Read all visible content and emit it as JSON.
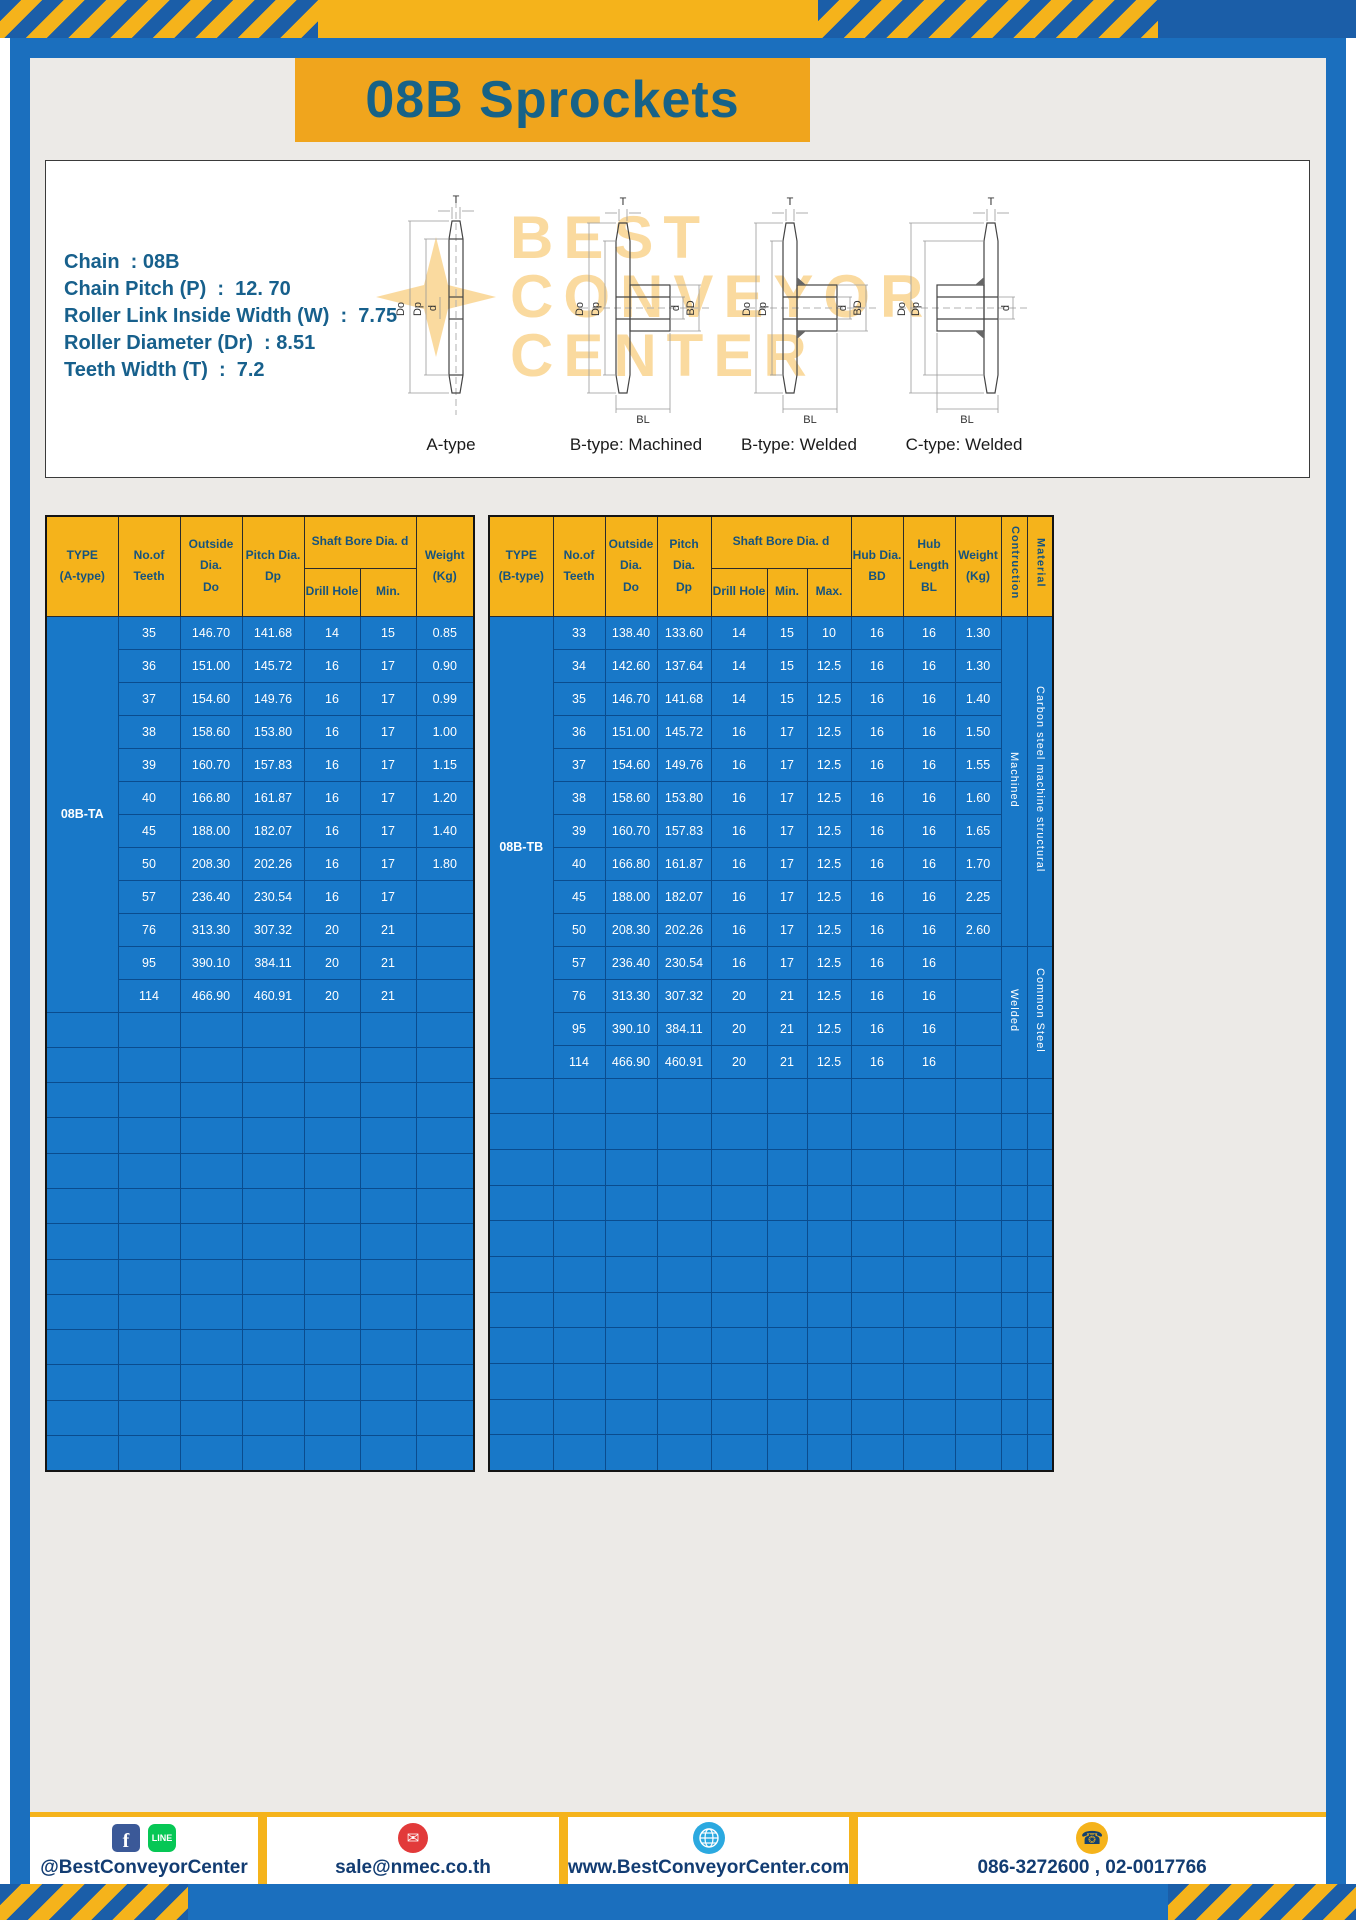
{
  "page": {
    "title": "08B Sprockets"
  },
  "specs": {
    "lines": [
      "Chain  : 08B",
      "Chain Pitch (P)  :  12. 70",
      "Roller Link Inside Width (W)  :  7.75",
      "Roller Diameter (Dr)  : 8.51",
      "Teeth Width (T)  :  7.2"
    ]
  },
  "drawings": {
    "watermark_lines": [
      "BEST",
      "CONVEYOR",
      "CENTER"
    ],
    "figures": [
      {
        "label": "A-type",
        "dims": {
          "t": "T",
          "do": "Do",
          "dp": "Dp",
          "d": "d"
        }
      },
      {
        "label": "B-type: Machined",
        "dims": {
          "t": "T",
          "do": "Do",
          "dp": "Dp",
          "d": "d",
          "bd": "BD",
          "bl": "BL"
        }
      },
      {
        "label": "B-type: Welded",
        "dims": {
          "t": "T",
          "do": "Do",
          "dp": "Dp",
          "d": "d",
          "bd": "BD",
          "bl": "BL"
        }
      },
      {
        "label": "C-type: Welded",
        "dims": {
          "t": "T",
          "do": "Do",
          "dp": "Dp",
          "d": "d",
          "bl": "BL"
        }
      }
    ]
  },
  "table_a": {
    "type_label": "08B-TA",
    "header": {
      "type": "TYPE\n(A-type)",
      "teeth": "No.of\nTeeth",
      "outside": "Outside\nDia.\nDo",
      "pitch": "Pitch Dia.\nDp",
      "shaft": "Shaft Bore Dia. d",
      "drill": "Drill Hole",
      "min": "Min.",
      "weight": "Weight\n(Kg)"
    },
    "rows": [
      {
        "teeth": "35",
        "do": "146.70",
        "dp": "141.68",
        "drill": "14",
        "min": "15",
        "weight": "0.85"
      },
      {
        "teeth": "36",
        "do": "151.00",
        "dp": "145.72",
        "drill": "16",
        "min": "17",
        "weight": "0.90"
      },
      {
        "teeth": "37",
        "do": "154.60",
        "dp": "149.76",
        "drill": "16",
        "min": "17",
        "weight": "0.99"
      },
      {
        "teeth": "38",
        "do": "158.60",
        "dp": "153.80",
        "drill": "16",
        "min": "17",
        "weight": "1.00"
      },
      {
        "teeth": "39",
        "do": "160.70",
        "dp": "157.83",
        "drill": "16",
        "min": "17",
        "weight": "1.15"
      },
      {
        "teeth": "40",
        "do": "166.80",
        "dp": "161.87",
        "drill": "16",
        "min": "17",
        "weight": "1.20"
      },
      {
        "teeth": "45",
        "do": "188.00",
        "dp": "182.07",
        "drill": "16",
        "min": "17",
        "weight": "1.40"
      },
      {
        "teeth": "50",
        "do": "208.30",
        "dp": "202.26",
        "drill": "16",
        "min": "17",
        "weight": "1.80"
      },
      {
        "teeth": "57",
        "do": "236.40",
        "dp": "230.54",
        "drill": "16",
        "min": "17",
        "weight": ""
      },
      {
        "teeth": "76",
        "do": "313.30",
        "dp": "307.32",
        "drill": "20",
        "min": "21",
        "weight": ""
      },
      {
        "teeth": "95",
        "do": "390.10",
        "dp": "384.11",
        "drill": "20",
        "min": "21",
        "weight": ""
      },
      {
        "teeth": "114",
        "do": "466.90",
        "dp": "460.91",
        "drill": "20",
        "min": "21",
        "weight": ""
      }
    ],
    "empty_rows": 13
  },
  "table_b": {
    "type_label": "08B-TB",
    "header": {
      "type": "TYPE\n(B-type)",
      "teeth": "No.of\nTeeth",
      "outside": "Outside\nDia.\nDo",
      "pitch": "Pitch Dia.\nDp",
      "shaft": "Shaft Bore Dia. d",
      "drill": "Drill Hole",
      "min": "Min.",
      "max": "Max.",
      "hub_dia": "Hub Dia.\nBD",
      "hub_len": "Hub\nLength\nBL",
      "weight": "Weight\n(Kg)",
      "construction": "Contruction",
      "material": "Material"
    },
    "rows": [
      {
        "teeth": "33",
        "do": "138.40",
        "dp": "133.60",
        "drill": "14",
        "min": "15",
        "max": "10",
        "bd": "16",
        "bl": "16",
        "weight": "1.30"
      },
      {
        "teeth": "34",
        "do": "142.60",
        "dp": "137.64",
        "drill": "14",
        "min": "15",
        "max": "12.5",
        "bd": "16",
        "bl": "16",
        "weight": "1.30"
      },
      {
        "teeth": "35",
        "do": "146.70",
        "dp": "141.68",
        "drill": "14",
        "min": "15",
        "max": "12.5",
        "bd": "16",
        "bl": "16",
        "weight": "1.40"
      },
      {
        "teeth": "36",
        "do": "151.00",
        "dp": "145.72",
        "drill": "16",
        "min": "17",
        "max": "12.5",
        "bd": "16",
        "bl": "16",
        "weight": "1.50"
      },
      {
        "teeth": "37",
        "do": "154.60",
        "dp": "149.76",
        "drill": "16",
        "min": "17",
        "max": "12.5",
        "bd": "16",
        "bl": "16",
        "weight": "1.55"
      },
      {
        "teeth": "38",
        "do": "158.60",
        "dp": "153.80",
        "drill": "16",
        "min": "17",
        "max": "12.5",
        "bd": "16",
        "bl": "16",
        "weight": "1.60"
      },
      {
        "teeth": "39",
        "do": "160.70",
        "dp": "157.83",
        "drill": "16",
        "min": "17",
        "max": "12.5",
        "bd": "16",
        "bl": "16",
        "weight": "1.65"
      },
      {
        "teeth": "40",
        "do": "166.80",
        "dp": "161.87",
        "drill": "16",
        "min": "17",
        "max": "12.5",
        "bd": "16",
        "bl": "16",
        "weight": "1.70"
      },
      {
        "teeth": "45",
        "do": "188.00",
        "dp": "182.07",
        "drill": "16",
        "min": "17",
        "max": "12.5",
        "bd": "16",
        "bl": "16",
        "weight": "2.25"
      },
      {
        "teeth": "50",
        "do": "208.30",
        "dp": "202.26",
        "drill": "16",
        "min": "17",
        "max": "12.5",
        "bd": "16",
        "bl": "16",
        "weight": "2.60"
      },
      {
        "teeth": "57",
        "do": "236.40",
        "dp": "230.54",
        "drill": "16",
        "min": "17",
        "max": "12.5",
        "bd": "16",
        "bl": "16",
        "weight": ""
      },
      {
        "teeth": "76",
        "do": "313.30",
        "dp": "307.32",
        "drill": "20",
        "min": "21",
        "max": "12.5",
        "bd": "16",
        "bl": "16",
        "weight": ""
      },
      {
        "teeth": "95",
        "do": "390.10",
        "dp": "384.11",
        "drill": "20",
        "min": "21",
        "max": "12.5",
        "bd": "16",
        "bl": "16",
        "weight": ""
      },
      {
        "teeth": "114",
        "do": "466.90",
        "dp": "460.91",
        "drill": "20",
        "min": "21",
        "max": "12.5",
        "bd": "16",
        "bl": "16",
        "weight": ""
      }
    ],
    "construction": [
      {
        "label": "Machined",
        "span": 10
      },
      {
        "label": "Welded",
        "span": 4
      }
    ],
    "material": [
      {
        "label": "Carbon steel  machine structural",
        "span": 10
      },
      {
        "label": "Common  Steel",
        "span": 4
      }
    ],
    "empty_rows": 11
  },
  "footer": {
    "social_handle": "@BestConveyorCenter",
    "email": "sale@nmec.co.th",
    "website": "www.BestConveyorCenter.com",
    "phones": "086-3272600 , 02-0017766",
    "icons": {
      "facebook": "f",
      "line": "LINE",
      "mail": "✉",
      "phone": "☎"
    }
  },
  "colors": {
    "accent_yellow": "#F5B31B",
    "banner_orange": "#F0A51D",
    "stripe_blue": "#1B5EA8",
    "frame_blue": "#1B6FBE",
    "cell_blue": "#1878C8",
    "grid_blue": "#0A4C8E",
    "header_text": "#15537E",
    "title_blue": "#176287",
    "page_bg": "#ECEAE7",
    "footer_navy": "#123C72",
    "facebook_blue": "#3B5998",
    "line_green": "#06C755",
    "mail_red": "#E23A3A",
    "globe_blue": "#2BA9E0",
    "phone_yellow": "#F5B31B"
  }
}
